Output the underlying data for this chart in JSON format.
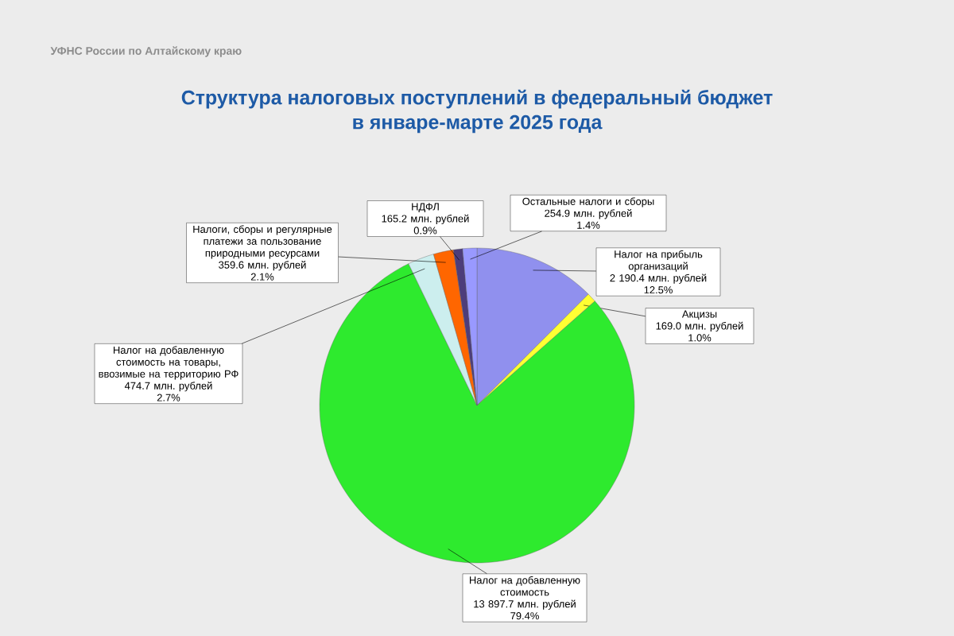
{
  "chart_data": {
    "type": "pie",
    "title": "Структура налоговых поступлений в федеральный бюджет в январе-марте 2025 года",
    "categories": [
      "Налог на прибыль организаций",
      "Акцизы",
      "Налог на добавленную стоимость",
      "Налог на добавленную стоимость на товары, ввозимые на территорию РФ",
      "Налоги, сборы и регулярные платежи за пользование природными ресурсами",
      "НДФЛ",
      "Остальные налоги и сборы"
    ],
    "values": [
      2190.4,
      169.0,
      13897.7,
      474.7,
      359.6,
      165.2,
      254.9
    ],
    "value_labels": [
      "2 190.4 млн. рублей 12.5%",
      "169.0 млн. рублей 1.0%",
      "13 897.7 млн. рублей 79.4%",
      "474.7 млн. рублей 2.7%",
      "359.6 млн. рублей 2.1%",
      "165.2 млн. рублей 0.9%",
      "254.9 млн. рублей 1.4%"
    ],
    "colors": [
      "#9090ee",
      "#ffff33",
      "#2eea2e",
      "#cceeee",
      "#ff6600",
      "#4d3d7a",
      "#9999ff"
    ],
    "annotations": [
      "УФНС России по Алтайскому краю"
    ]
  }
}
